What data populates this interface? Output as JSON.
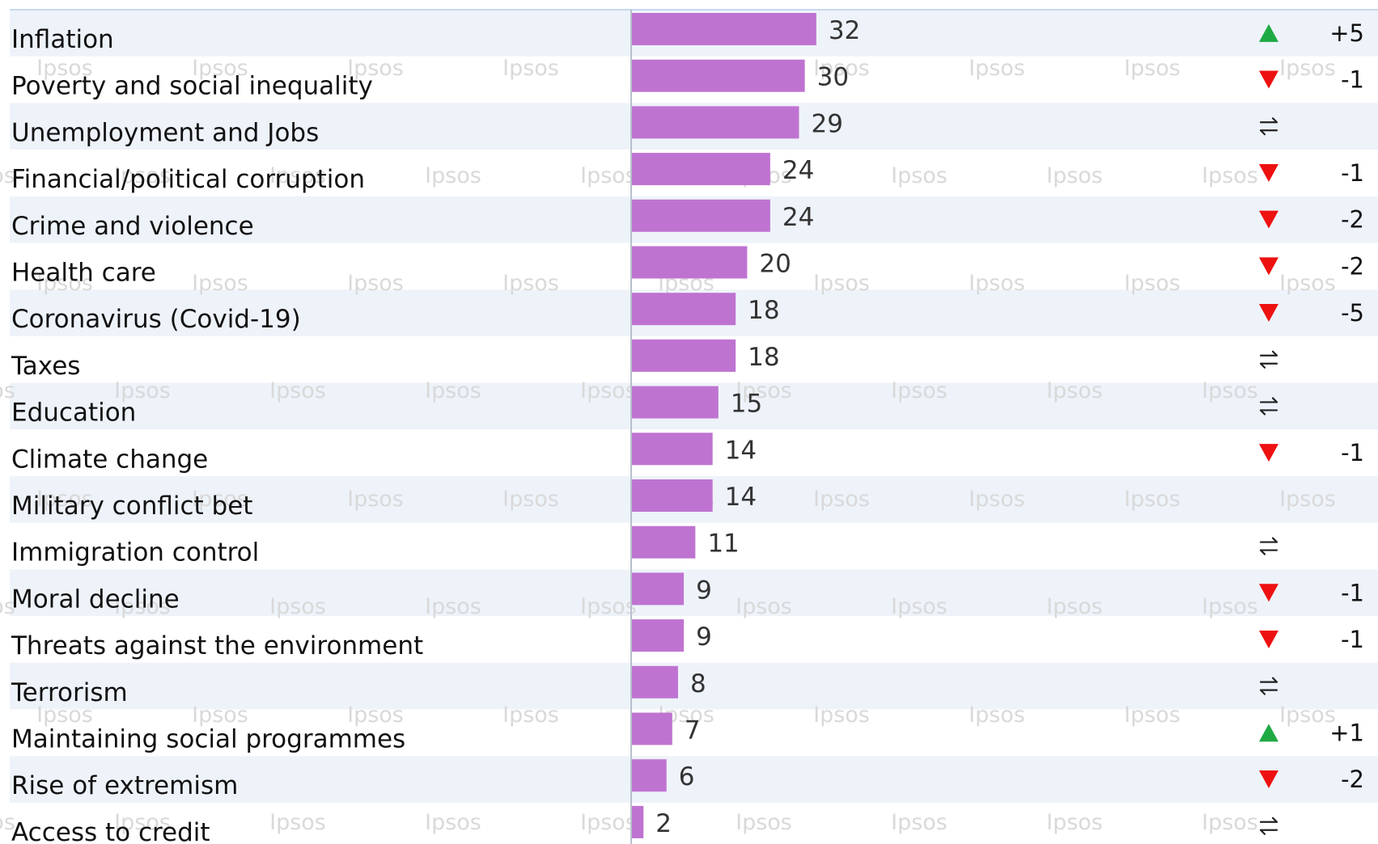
{
  "watermark": "Ipsos",
  "colors": {
    "bar": "#bf73d1",
    "row_band": "#eef3fa",
    "up": "#1faa44",
    "down": "#ee1111",
    "axis": "#b7c0cc",
    "top_rule": "#c7d8ee"
  },
  "chart_data": {
    "type": "bar",
    "orientation": "horizontal",
    "categories": [
      "Inflation",
      "Poverty and social inequality",
      "Unemployment and Jobs",
      "Financial/political corruption",
      "Crime and violence",
      "Health care",
      "Coronavirus (Covid-19)",
      "Taxes",
      "Education",
      "Climate change",
      "Military conflict bet",
      "Immigration control",
      "Moral decline",
      "Threats against the environment",
      "Terrorism",
      "Maintaining social programmes",
      "Rise of extremism",
      "Access to credit"
    ],
    "values": [
      32,
      30,
      29,
      24,
      24,
      20,
      18,
      18,
      15,
      14,
      14,
      11,
      9,
      9,
      8,
      7,
      6,
      2
    ],
    "xlim": [
      0,
      100
    ],
    "changes": [
      {
        "dir": "up",
        "text": "+5"
      },
      {
        "dir": "down",
        "text": "-1"
      },
      {
        "dir": "flat",
        "text": ""
      },
      {
        "dir": "down",
        "text": "-1"
      },
      {
        "dir": "down",
        "text": "-2"
      },
      {
        "dir": "down",
        "text": "-2"
      },
      {
        "dir": "down",
        "text": "-5"
      },
      {
        "dir": "flat",
        "text": ""
      },
      {
        "dir": "flat",
        "text": ""
      },
      {
        "dir": "down",
        "text": "-1"
      },
      {
        "dir": "none",
        "text": ""
      },
      {
        "dir": "flat",
        "text": ""
      },
      {
        "dir": "down",
        "text": "-1"
      },
      {
        "dir": "down",
        "text": "-1"
      },
      {
        "dir": "flat",
        "text": ""
      },
      {
        "dir": "up",
        "text": "+1"
      },
      {
        "dir": "down",
        "text": "-2"
      },
      {
        "dir": "flat",
        "text": ""
      }
    ],
    "icons": {
      "up": "up-triangle-icon",
      "down": "down-triangle-icon",
      "flat": "swap-arrows-icon"
    },
    "grid": false,
    "legend": "none"
  }
}
